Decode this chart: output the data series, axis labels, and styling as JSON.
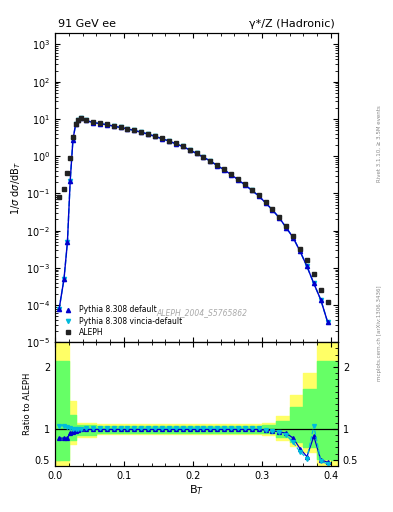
{
  "title_left": "91 GeV ee",
  "title_right": "γ*/Z (Hadronic)",
  "ylabel_main": "1/σ dσ/dB_T",
  "ylabel_ratio": "Ratio to ALEPH",
  "xlabel": "B_T",
  "right_label_top": "Rivet 3.1.10, ≥ 3.5M events",
  "right_label_bot": "mcplots.cern.ch [arXiv:1306.3436]",
  "watermark": "ALEPH_2004_S5765862",
  "ylim_main": [
    1e-05,
    2000
  ],
  "ylim_ratio": [
    0.4,
    2.4
  ],
  "xlim": [
    0.0,
    0.41
  ],
  "ref_color": "#222222",
  "mc1_color": "#0000cc",
  "mc2_color": "#00bbdd",
  "band_yellow": "#ffff66",
  "band_green": "#66ff66",
  "aleph_x": [
    0.006,
    0.013,
    0.018,
    0.022,
    0.026,
    0.03,
    0.034,
    0.038,
    0.045,
    0.055,
    0.065,
    0.075,
    0.085,
    0.095,
    0.105,
    0.115,
    0.125,
    0.135,
    0.145,
    0.155,
    0.165,
    0.175,
    0.185,
    0.195,
    0.205,
    0.215,
    0.225,
    0.235,
    0.245,
    0.255,
    0.265,
    0.275,
    0.285,
    0.295,
    0.305,
    0.315,
    0.325,
    0.335,
    0.345,
    0.355,
    0.365,
    0.375,
    0.385,
    0.395
  ],
  "aleph_y": [
    0.08,
    0.13,
    0.35,
    0.9,
    3.2,
    7.5,
    9.5,
    10.5,
    9.2,
    8.1,
    7.6,
    7.1,
    6.5,
    6.0,
    5.5,
    5.0,
    4.5,
    4.0,
    3.5,
    3.0,
    2.6,
    2.2,
    1.85,
    1.5,
    1.2,
    0.95,
    0.75,
    0.57,
    0.44,
    0.33,
    0.24,
    0.175,
    0.125,
    0.088,
    0.058,
    0.037,
    0.023,
    0.013,
    0.007,
    0.0032,
    0.0016,
    0.0007,
    0.00025,
    0.00012
  ],
  "mc1_y": [
    8e-05,
    0.0005,
    0.005,
    0.22,
    2.8,
    7.4,
    9.4,
    10.4,
    9.1,
    8.0,
    7.5,
    7.0,
    6.4,
    5.9,
    5.4,
    4.9,
    4.4,
    3.9,
    3.4,
    2.95,
    2.55,
    2.15,
    1.82,
    1.48,
    1.18,
    0.94,
    0.74,
    0.56,
    0.43,
    0.32,
    0.235,
    0.17,
    0.122,
    0.086,
    0.056,
    0.036,
    0.022,
    0.012,
    0.0065,
    0.0028,
    0.0011,
    0.00038,
    0.00014,
    3.5e-05
  ],
  "mc2_y": [
    8e-05,
    0.0005,
    0.005,
    0.22,
    2.8,
    7.4,
    9.4,
    10.4,
    9.1,
    8.0,
    7.5,
    7.0,
    6.4,
    5.9,
    5.4,
    4.9,
    4.4,
    3.9,
    3.4,
    2.95,
    2.55,
    2.15,
    1.82,
    1.48,
    1.18,
    0.94,
    0.74,
    0.56,
    0.43,
    0.32,
    0.235,
    0.17,
    0.122,
    0.086,
    0.056,
    0.036,
    0.022,
    0.012,
    0.0065,
    0.0028,
    0.0011,
    0.00038,
    0.00014,
    3.5e-05
  ],
  "ratio_mc1": [
    0.85,
    0.85,
    0.85,
    0.94,
    0.95,
    0.97,
    0.98,
    0.99,
    0.99,
    0.99,
    0.99,
    0.99,
    0.99,
    0.99,
    0.99,
    0.99,
    0.99,
    0.99,
    0.99,
    0.99,
    0.99,
    0.99,
    0.99,
    0.99,
    0.99,
    0.99,
    0.99,
    0.99,
    0.99,
    0.99,
    0.99,
    0.99,
    0.99,
    0.99,
    0.98,
    0.97,
    0.95,
    0.93,
    0.85,
    0.68,
    0.55,
    0.88,
    0.5,
    0.46
  ],
  "ratio_mc2": [
    1.05,
    1.05,
    1.03,
    1.01,
    1.0,
    1.0,
    1.0,
    1.0,
    1.01,
    1.01,
    1.01,
    1.01,
    1.01,
    1.01,
    1.01,
    1.01,
    1.01,
    1.01,
    1.01,
    1.01,
    1.01,
    1.01,
    1.01,
    1.01,
    1.01,
    1.01,
    1.01,
    1.01,
    1.01,
    1.01,
    1.01,
    1.01,
    1.01,
    1.01,
    0.98,
    0.97,
    0.95,
    0.9,
    0.78,
    0.63,
    0.52,
    1.05,
    0.48,
    0.43
  ],
  "band_edges": [
    0.0,
    0.01,
    0.02,
    0.03,
    0.06,
    0.3,
    0.32,
    0.34,
    0.36,
    0.38,
    0.4,
    0.41
  ],
  "band_y_lo": [
    0.4,
    0.4,
    0.75,
    0.87,
    0.92,
    0.9,
    0.82,
    0.73,
    0.62,
    0.42,
    0.4,
    0.4
  ],
  "band_y_hi": [
    2.4,
    2.4,
    1.45,
    1.1,
    1.08,
    1.1,
    1.2,
    1.55,
    1.9,
    2.4,
    2.4,
    2.4
  ],
  "band_g_lo": [
    0.5,
    0.5,
    0.82,
    0.9,
    0.94,
    0.93,
    0.87,
    0.79,
    0.7,
    0.52,
    0.5,
    0.5
  ],
  "band_g_hi": [
    2.1,
    2.1,
    1.22,
    1.06,
    1.05,
    1.06,
    1.12,
    1.35,
    1.65,
    2.1,
    2.1,
    2.1
  ]
}
